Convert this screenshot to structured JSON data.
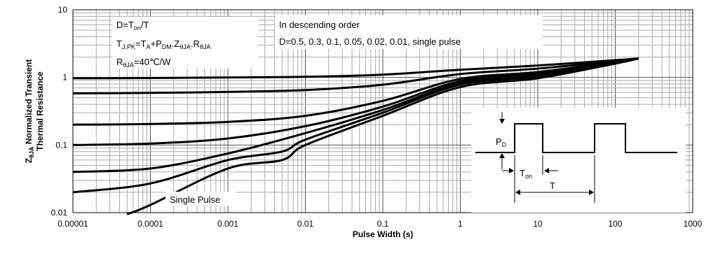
{
  "chart_data": {
    "type": "line",
    "title": "",
    "xlabel": "Pulse Width (s)",
    "ylabel_line1": "Z",
    "ylabel_sub": "θJA",
    "ylabel_rest": " Normalized Transient",
    "ylabel_line2": "Thermal Resistance",
    "xscale": "log",
    "yscale": "log",
    "xlim": [
      1e-05,
      1000
    ],
    "ylim": [
      0.01,
      10
    ],
    "grid": true,
    "x_tick_labels": [
      "0.00001",
      "0.0001",
      "0.001",
      "0.01",
      "0.1",
      "1",
      "10",
      "100",
      "1000"
    ],
    "y_tick_labels": [
      "0.01",
      "0.1",
      "1",
      "10"
    ],
    "series": [
      {
        "d": 0.5,
        "points": [
          [
            1e-05,
            0.97
          ],
          [
            0.0001,
            0.98
          ],
          [
            0.001,
            1.0
          ],
          [
            0.01,
            1.02
          ],
          [
            0.1,
            1.1
          ],
          [
            1,
            1.3
          ],
          [
            10,
            1.5
          ],
          [
            100,
            1.8
          ],
          [
            200,
            1.9
          ]
        ]
      },
      {
        "d": 0.3,
        "points": [
          [
            1e-05,
            0.58
          ],
          [
            0.0001,
            0.59
          ],
          [
            0.001,
            0.61
          ],
          [
            0.01,
            0.65
          ],
          [
            0.1,
            0.78
          ],
          [
            1,
            1.12
          ],
          [
            10,
            1.35
          ],
          [
            100,
            1.75
          ],
          [
            200,
            1.9
          ]
        ]
      },
      {
        "d": 0.1,
        "points": [
          [
            1e-05,
            0.2
          ],
          [
            0.0001,
            0.205
          ],
          [
            0.001,
            0.22
          ],
          [
            0.01,
            0.27
          ],
          [
            0.1,
            0.45
          ],
          [
            1,
            0.95
          ],
          [
            10,
            1.2
          ],
          [
            100,
            1.7
          ],
          [
            200,
            1.9
          ]
        ]
      },
      {
        "d": 0.05,
        "points": [
          [
            1e-05,
            0.1
          ],
          [
            0.0001,
            0.105
          ],
          [
            0.001,
            0.125
          ],
          [
            0.01,
            0.19
          ],
          [
            0.1,
            0.37
          ],
          [
            1,
            0.88
          ],
          [
            10,
            1.15
          ],
          [
            100,
            1.68
          ],
          [
            200,
            1.9
          ]
        ]
      },
      {
        "d": 0.02,
        "points": [
          [
            1e-05,
            0.04
          ],
          [
            0.0001,
            0.045
          ],
          [
            0.001,
            0.075
          ],
          [
            0.01,
            0.15
          ],
          [
            0.1,
            0.33
          ],
          [
            1,
            0.82
          ],
          [
            10,
            1.08
          ],
          [
            100,
            1.65
          ],
          [
            200,
            1.9
          ]
        ]
      },
      {
        "d": 0.01,
        "points": [
          [
            1e-05,
            0.02
          ],
          [
            0.0001,
            0.027
          ],
          [
            0.001,
            0.06
          ],
          [
            0.005,
            0.08
          ],
          [
            0.01,
            0.12
          ],
          [
            0.1,
            0.3
          ],
          [
            1,
            0.78
          ],
          [
            10,
            1.03
          ],
          [
            100,
            1.62
          ],
          [
            200,
            1.9
          ]
        ]
      },
      {
        "d": "single pulse",
        "points": [
          [
            5e-05,
            0.0095
          ],
          [
            0.0001,
            0.013
          ],
          [
            0.001,
            0.045
          ],
          [
            0.005,
            0.06
          ],
          [
            0.01,
            0.1
          ],
          [
            0.1,
            0.27
          ],
          [
            1,
            0.72
          ],
          [
            10,
            0.97
          ],
          [
            100,
            1.6
          ],
          [
            200,
            1.9
          ]
        ]
      }
    ],
    "annotations": {
      "d_formula": {
        "main": "D=T",
        "sub": "on",
        "rest": "/T"
      },
      "tj_formula": {
        "t1": "T",
        "s1": "J,PK",
        "t2": "=T",
        "s2": "A",
        "t3": "+P",
        "s3": "DM",
        "t4": ".Z",
        "s4": "θJA",
        "t5": ".R",
        "s5": "θJA"
      },
      "rth": {
        "main": "R",
        "sub": "θJA",
        "rest": "=40℃/W"
      },
      "order_line1": "In descending order",
      "order_line2": "D=0.5, 0.3, 0.1, 0.05, 0.02, 0.01, single pulse",
      "single_pulse_label": "Single Pulse",
      "pd_label": {
        "main": "P",
        "sub": "D"
      },
      "ton_label": {
        "main": "T",
        "sub": "on"
      },
      "t_label": "T"
    }
  }
}
